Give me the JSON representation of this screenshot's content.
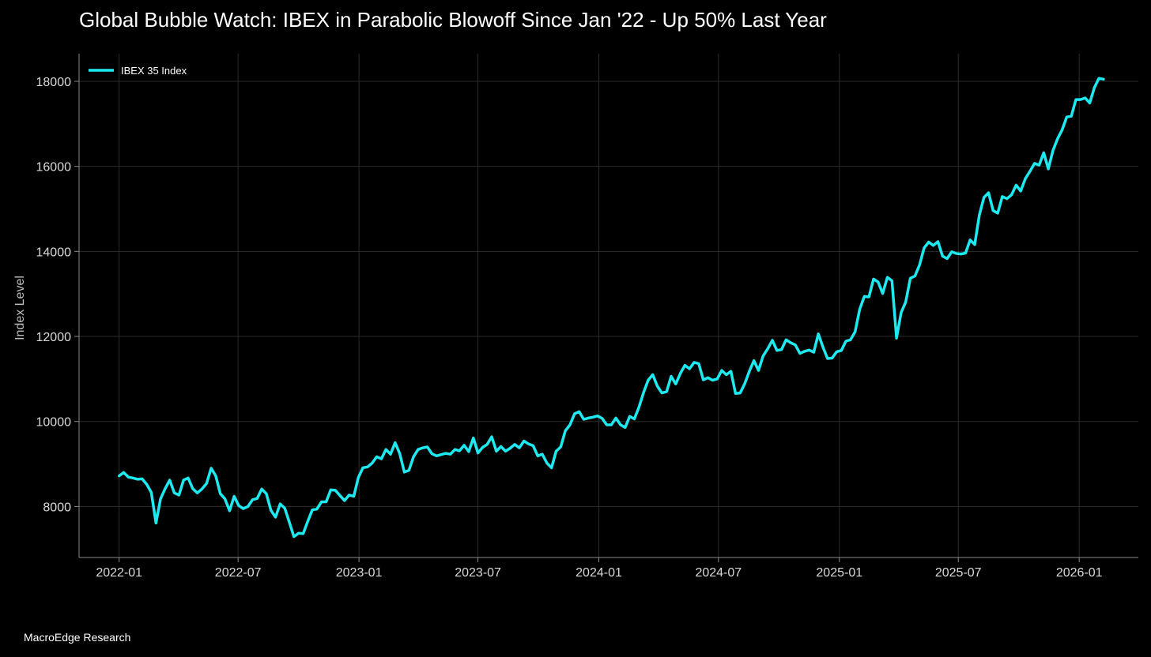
{
  "chart_data": {
    "type": "line",
    "title": "Global Bubble Watch: IBEX in Parabolic Blowoff Since Jan '22 - Up 50% Last Year",
    "xlabel": "",
    "ylabel": "Index Level",
    "ylim": [
      6800,
      18650
    ],
    "xlim": [
      "2021-11-01",
      "2026-04-01"
    ],
    "x_ticks": [
      "2022-01",
      "2022-07",
      "2023-01",
      "2023-07",
      "2024-01",
      "2024-07",
      "2025-01",
      "2025-07",
      "2026-01"
    ],
    "y_ticks": [
      8000,
      10000,
      12000,
      14000,
      16000,
      18000
    ],
    "grid": true,
    "legend_position": "top-left",
    "series": [
      {
        "name": "IBEX 35 Index",
        "color": "#1de9f0",
        "x": [
          "2022-01-01",
          "2022-01-08",
          "2022-01-15",
          "2022-01-22",
          "2022-01-29",
          "2022-02-05",
          "2022-02-12",
          "2022-02-19",
          "2022-02-26",
          "2022-03-05",
          "2022-03-12",
          "2022-03-19",
          "2022-03-26",
          "2022-04-02",
          "2022-04-09",
          "2022-04-16",
          "2022-04-23",
          "2022-04-30",
          "2022-05-07",
          "2022-05-14",
          "2022-05-21",
          "2022-05-28",
          "2022-06-04",
          "2022-06-11",
          "2022-06-18",
          "2022-06-25",
          "2022-07-02",
          "2022-07-09",
          "2022-07-16",
          "2022-07-23",
          "2022-07-30",
          "2022-08-06",
          "2022-08-13",
          "2022-08-20",
          "2022-08-27",
          "2022-09-03",
          "2022-09-10",
          "2022-09-17",
          "2022-09-24",
          "2022-10-01",
          "2022-10-08",
          "2022-10-15",
          "2022-10-22",
          "2022-10-29",
          "2022-11-05",
          "2022-11-12",
          "2022-11-19",
          "2022-11-26",
          "2022-12-03",
          "2022-12-10",
          "2022-12-17",
          "2022-12-24",
          "2022-12-31",
          "2023-01-07",
          "2023-01-14",
          "2023-01-21",
          "2023-01-28",
          "2023-02-04",
          "2023-02-11",
          "2023-02-18",
          "2023-02-25",
          "2023-03-04",
          "2023-03-11",
          "2023-03-18",
          "2023-03-25",
          "2023-04-01",
          "2023-04-08",
          "2023-04-15",
          "2023-04-22",
          "2023-04-29",
          "2023-05-06",
          "2023-05-13",
          "2023-05-20",
          "2023-05-27",
          "2023-06-03",
          "2023-06-10",
          "2023-06-17",
          "2023-06-24",
          "2023-07-01",
          "2023-07-08",
          "2023-07-15",
          "2023-07-22",
          "2023-07-29",
          "2023-08-05",
          "2023-08-12",
          "2023-08-19",
          "2023-08-26",
          "2023-09-02",
          "2023-09-09",
          "2023-09-16",
          "2023-09-23",
          "2023-09-30",
          "2023-10-07",
          "2023-10-14",
          "2023-10-21",
          "2023-10-28",
          "2023-11-04",
          "2023-11-11",
          "2023-11-18",
          "2023-11-25",
          "2023-12-02",
          "2023-12-09",
          "2023-12-16",
          "2023-12-23",
          "2023-12-30",
          "2024-01-06",
          "2024-01-13",
          "2024-01-20",
          "2024-01-27",
          "2024-02-03",
          "2024-02-10",
          "2024-02-17",
          "2024-02-24",
          "2024-03-02",
          "2024-03-09",
          "2024-03-16",
          "2024-03-23",
          "2024-03-30",
          "2024-04-06",
          "2024-04-13",
          "2024-04-20",
          "2024-04-27",
          "2024-05-04",
          "2024-05-11",
          "2024-05-18",
          "2024-05-25",
          "2024-06-01",
          "2024-06-08",
          "2024-06-15",
          "2024-06-22",
          "2024-06-29",
          "2024-07-06",
          "2024-07-13",
          "2024-07-20",
          "2024-07-27",
          "2024-08-03",
          "2024-08-10",
          "2024-08-17",
          "2024-08-24",
          "2024-08-31",
          "2024-09-07",
          "2024-09-14",
          "2024-09-21",
          "2024-09-28",
          "2024-10-05",
          "2024-10-12",
          "2024-10-19",
          "2024-10-26",
          "2024-11-02",
          "2024-11-09",
          "2024-11-16",
          "2024-11-23",
          "2024-11-30",
          "2024-12-07",
          "2024-12-14",
          "2024-12-21",
          "2024-12-28",
          "2025-01-04",
          "2025-01-11",
          "2025-01-18",
          "2025-01-25",
          "2025-02-01",
          "2025-02-08",
          "2025-02-15",
          "2025-02-22",
          "2025-03-01",
          "2025-03-08",
          "2025-03-15",
          "2025-03-22",
          "2025-03-29",
          "2025-04-05",
          "2025-04-12",
          "2025-04-19",
          "2025-04-26",
          "2025-05-03",
          "2025-05-10",
          "2025-05-17",
          "2025-05-24",
          "2025-05-31",
          "2025-06-07",
          "2025-06-14",
          "2025-06-21",
          "2025-06-28",
          "2025-07-05",
          "2025-07-12",
          "2025-07-19",
          "2025-07-26",
          "2025-08-02",
          "2025-08-09",
          "2025-08-16",
          "2025-08-23",
          "2025-08-30",
          "2025-09-06",
          "2025-09-13",
          "2025-09-20",
          "2025-09-27",
          "2025-10-04",
          "2025-10-11",
          "2025-10-18",
          "2025-10-25",
          "2025-11-01",
          "2025-11-08",
          "2025-11-15",
          "2025-11-22",
          "2025-11-29",
          "2025-12-06",
          "2025-12-13",
          "2025-12-20",
          "2025-12-27",
          "2026-01-03",
          "2026-01-10",
          "2026-01-17",
          "2026-01-24",
          "2026-01-31",
          "2026-02-07"
        ],
        "values": [
          8720,
          8800,
          8690,
          8670,
          8640,
          8650,
          8520,
          8330,
          7610,
          8180,
          8420,
          8620,
          8320,
          8270,
          8620,
          8670,
          8420,
          8320,
          8410,
          8540,
          8900,
          8720,
          8300,
          8180,
          7900,
          8240,
          8020,
          7950,
          8000,
          8160,
          8190,
          8410,
          8300,
          7910,
          7750,
          8060,
          7960,
          7630,
          7290,
          7370,
          7360,
          7650,
          7920,
          7940,
          8110,
          8110,
          8390,
          8380,
          8260,
          8140,
          8270,
          8240,
          8680,
          8910,
          8930,
          9020,
          9170,
          9120,
          9340,
          9230,
          9500,
          9240,
          8810,
          8850,
          9170,
          9340,
          9380,
          9400,
          9240,
          9190,
          9220,
          9250,
          9230,
          9340,
          9310,
          9440,
          9290,
          9610,
          9260,
          9390,
          9460,
          9640,
          9300,
          9410,
          9300,
          9370,
          9460,
          9380,
          9540,
          9470,
          9430,
          9190,
          9230,
          9020,
          8910,
          9300,
          9400,
          9780,
          9920,
          10180,
          10230,
          10050,
          10080,
          10100,
          10130,
          10070,
          9920,
          9920,
          10080,
          9920,
          9860,
          10120,
          10060,
          10330,
          10680,
          10970,
          11100,
          10830,
          10670,
          10700,
          11060,
          10880,
          11130,
          11320,
          11240,
          11390,
          11360,
          10980,
          11030,
          10970,
          11000,
          11200,
          11100,
          11180,
          10660,
          10670,
          10890,
          11180,
          11430,
          11200,
          11540,
          11710,
          11910,
          11670,
          11690,
          11920,
          11850,
          11800,
          11600,
          11650,
          11680,
          11630,
          12060,
          11750,
          11480,
          11490,
          11640,
          11670,
          11890,
          11920,
          12110,
          12640,
          12940,
          12930,
          13350,
          13280,
          13010,
          13390,
          13310,
          11960,
          12560,
          12810,
          13370,
          13420,
          13680,
          14080,
          14220,
          14140,
          14230,
          13890,
          13830,
          13990,
          13950,
          13940,
          13960,
          14270,
          14160,
          14850,
          15270,
          15380,
          14960,
          14900,
          15290,
          15240,
          15330,
          15560,
          15420,
          15710,
          15880,
          16070,
          16030,
          16320,
          15940,
          16370,
          16650,
          16860,
          17160,
          17180,
          17570,
          17570,
          17610,
          17490,
          17850,
          18070,
          18050
        ]
      }
    ]
  },
  "footer": {
    "source": "MacroEdge Research"
  }
}
